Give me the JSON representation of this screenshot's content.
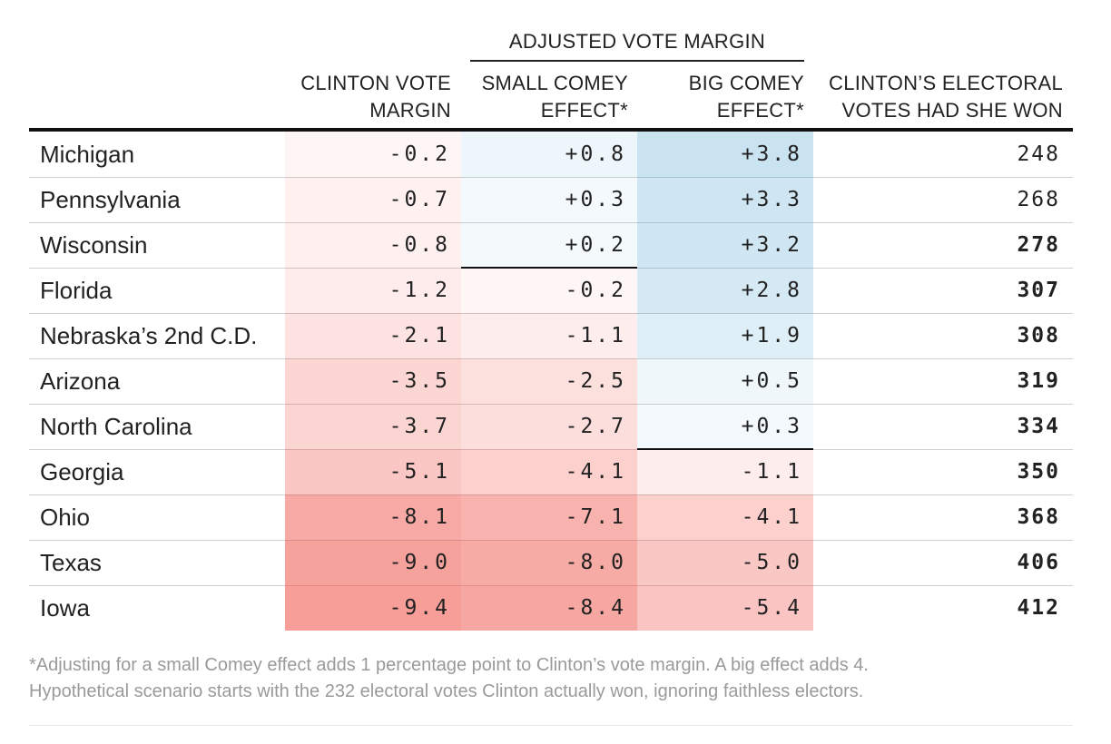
{
  "chart_data": {
    "type": "table",
    "group_header": "ADJUSTED VOTE MARGIN",
    "columns": {
      "state": "",
      "margin": [
        "CLINTON VOTE",
        "MARGIN"
      ],
      "small": [
        "SMALL COMEY",
        "EFFECT*"
      ],
      "big": [
        "BIG COMEY",
        "EFFECT*"
      ],
      "ev": [
        "CLINTON’S ELECTORAL",
        "VOTES HAD SHE WON"
      ]
    },
    "rows": [
      {
        "state": "Michigan",
        "margin": "-0.2",
        "small": "+0.8",
        "big": "+3.8",
        "ev": "248",
        "ev_bold": false
      },
      {
        "state": "Pennsylvania",
        "margin": "-0.7",
        "small": "+0.3",
        "big": "+3.3",
        "ev": "268",
        "ev_bold": false
      },
      {
        "state": "Wisconsin",
        "margin": "-0.8",
        "small": "+0.2",
        "big": "+3.2",
        "ev": "278",
        "ev_bold": true
      },
      {
        "state": "Florida",
        "margin": "-1.2",
        "small": "-0.2",
        "big": "+2.8",
        "ev": "307",
        "ev_bold": true
      },
      {
        "state": "Nebraska’s 2nd C.D.",
        "margin": "-2.1",
        "small": "-1.1",
        "big": "+1.9",
        "ev": "308",
        "ev_bold": true
      },
      {
        "state": "Arizona",
        "margin": "-3.5",
        "small": "-2.5",
        "big": "+0.5",
        "ev": "319",
        "ev_bold": true
      },
      {
        "state": "North Carolina",
        "margin": "-3.7",
        "small": "-2.7",
        "big": "+0.3",
        "ev": "334",
        "ev_bold": true
      },
      {
        "state": "Georgia",
        "margin": "-5.1",
        "small": "-4.1",
        "big": "-1.1",
        "ev": "350",
        "ev_bold": true
      },
      {
        "state": "Ohio",
        "margin": "-8.1",
        "small": "-7.1",
        "big": "-4.1",
        "ev": "368",
        "ev_bold": true
      },
      {
        "state": "Texas",
        "margin": "-9.0",
        "small": "-8.0",
        "big": "-5.0",
        "ev": "406",
        "ev_bold": true
      },
      {
        "state": "Iowa",
        "margin": "-9.4",
        "small": "-8.4",
        "big": "-5.4",
        "ev": "412",
        "ev_bold": true
      }
    ],
    "colors": {
      "positive": "#1f8cc4",
      "negative": "#ee4b3f",
      "threshold_line": "#111111"
    }
  },
  "footnote": [
    "*Adjusting for a small Comey effect adds 1 percentage point to Clinton’s vote margin. A big effect adds 4.",
    "Hypothetical scenario starts with the 232 electoral votes Clinton actually won, ignoring faithless electors."
  ]
}
